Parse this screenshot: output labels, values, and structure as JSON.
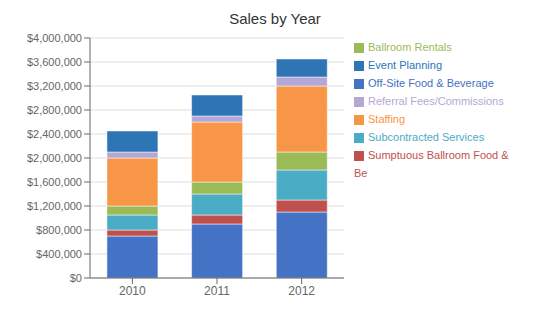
{
  "chart_data": {
    "type": "bar",
    "title": "Sales by Year",
    "categories": [
      "2010",
      "2011",
      "2012"
    ],
    "series": [
      {
        "name": "Off-Site Food & Beverage",
        "color": "#4472C4",
        "values": [
          700000,
          900000,
          1100000
        ]
      },
      {
        "name": "Sumptuous Ballroom Food & Be",
        "color": "#C0504D",
        "values": [
          100000,
          150000,
          200000
        ]
      },
      {
        "name": "Subcontracted Services",
        "color": "#4BACC6",
        "values": [
          250000,
          350000,
          500000
        ]
      },
      {
        "name": "Ballroom Rentals",
        "color": "#9BBB59",
        "values": [
          150000,
          200000,
          300000
        ]
      },
      {
        "name": "Staffing",
        "color": "#F79646",
        "values": [
          800000,
          1000000,
          1100000
        ]
      },
      {
        "name": "Referral Fees/Commissions",
        "color": "#B4A7D6",
        "values": [
          100000,
          100000,
          150000
        ]
      },
      {
        "name": "Event Planning",
        "color": "#2E75B6",
        "values": [
          350000,
          350000,
          300000
        ]
      }
    ],
    "stacked": true,
    "ylim": [
      0,
      4000000
    ],
    "yticks": [
      {
        "value": 0,
        "label": "$0"
      },
      {
        "value": 400000,
        "label": "$400,000"
      },
      {
        "value": 800000,
        "label": "$800,000"
      },
      {
        "value": 1200000,
        "label": "$1,200,000"
      },
      {
        "value": 1600000,
        "label": "$1,600,000"
      },
      {
        "value": 2000000,
        "label": "$2,000,000"
      },
      {
        "value": 2400000,
        "label": "$2,400,000"
      },
      {
        "value": 2800000,
        "label": "$2,800,000"
      },
      {
        "value": 3200000,
        "label": "$3,200,000"
      },
      {
        "value": 3600000,
        "label": "$3,600,000"
      },
      {
        "value": 4000000,
        "label": "$4,000,000"
      }
    ],
    "grid": true,
    "legend": "right"
  }
}
